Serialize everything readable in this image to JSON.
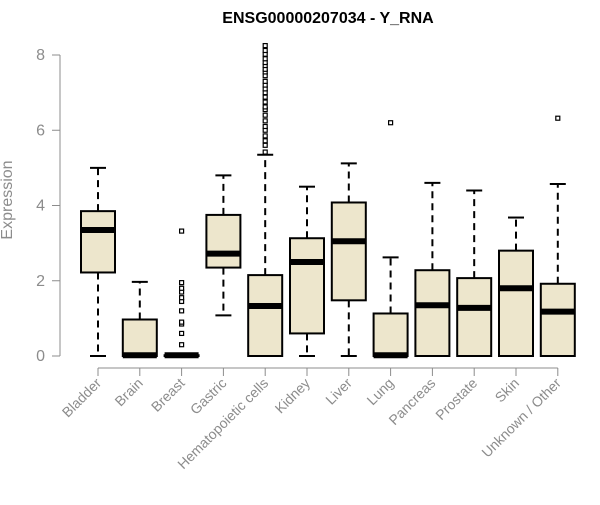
{
  "chart_data": {
    "type": "boxplot",
    "title": "ENSG00000207034 - Y_RNA",
    "xlabel": "",
    "ylabel": "Expression",
    "ylim": [
      0,
      8.2
    ],
    "yticks": [
      0,
      2,
      4,
      6,
      8
    ],
    "grid": false,
    "legend": "none",
    "colors": {
      "box_fill": "#ede6cc",
      "box_stroke": "#000000",
      "axis": "#8c8c8c",
      "title": "#000000"
    },
    "categories": [
      "Bladder",
      "Brain",
      "Breast",
      "Gastric",
      "Hematopoietic cells",
      "Kidney",
      "Liver",
      "Lung",
      "Pancreas",
      "Prostate",
      "Skin",
      "Unknown / Other"
    ],
    "boxes": [
      {
        "name": "Bladder",
        "whisker_low": 0,
        "q1": 2.22,
        "median": 3.35,
        "q3": 3.85,
        "whisker_high": 5.0,
        "outliers": []
      },
      {
        "name": "Brain",
        "whisker_low": 0,
        "q1": 0,
        "median": 0.02,
        "q3": 0.97,
        "whisker_high": 1.97,
        "outliers": []
      },
      {
        "name": "Breast",
        "whisker_low": 0,
        "q1": 0,
        "median": 0.02,
        "q3": 0.02,
        "whisker_high": 0.02,
        "outliers": [
          0.3,
          0.6,
          0.85,
          0.9,
          1.2,
          1.45,
          1.55,
          1.7,
          1.8,
          1.95,
          3.32
        ]
      },
      {
        "name": "Gastric",
        "whisker_low": 1.08,
        "q1": 2.35,
        "median": 2.72,
        "q3": 3.75,
        "whisker_high": 4.8,
        "outliers": []
      },
      {
        "name": "Hematopoietic cells",
        "whisker_low": 0,
        "q1": 0,
        "median": 1.33,
        "q3": 2.15,
        "whisker_high": 5.35,
        "outliers": [
          5.42,
          5.6,
          5.72,
          5.85,
          6.0,
          6.1,
          6.25,
          6.4,
          6.55,
          6.62,
          6.75,
          6.88,
          7.0,
          7.1,
          7.2,
          7.3,
          7.45,
          7.55,
          7.62,
          7.72,
          7.8,
          7.9,
          8.02,
          8.12,
          8.25
        ]
      },
      {
        "name": "Kidney",
        "whisker_low": 0,
        "q1": 0.6,
        "median": 2.5,
        "q3": 3.13,
        "whisker_high": 4.5,
        "outliers": []
      },
      {
        "name": "Liver",
        "whisker_low": 0,
        "q1": 1.48,
        "median": 3.05,
        "q3": 4.08,
        "whisker_high": 5.12,
        "outliers": []
      },
      {
        "name": "Lung",
        "whisker_low": 0,
        "q1": 0,
        "median": 0.02,
        "q3": 1.13,
        "whisker_high": 2.62,
        "outliers": [
          6.2
        ]
      },
      {
        "name": "Pancreas",
        "whisker_low": 0,
        "q1": 0,
        "median": 1.35,
        "q3": 2.28,
        "whisker_high": 4.6,
        "outliers": []
      },
      {
        "name": "Prostate",
        "whisker_low": 0,
        "q1": 0,
        "median": 1.28,
        "q3": 2.07,
        "whisker_high": 4.4,
        "outliers": []
      },
      {
        "name": "Skin",
        "whisker_low": 0,
        "q1": 0,
        "median": 1.8,
        "q3": 2.8,
        "whisker_high": 3.68,
        "outliers": []
      },
      {
        "name": "Unknown / Other",
        "whisker_low": 0,
        "q1": 0,
        "median": 1.18,
        "q3": 1.92,
        "whisker_high": 4.57,
        "outliers": [
          6.32
        ]
      }
    ]
  }
}
